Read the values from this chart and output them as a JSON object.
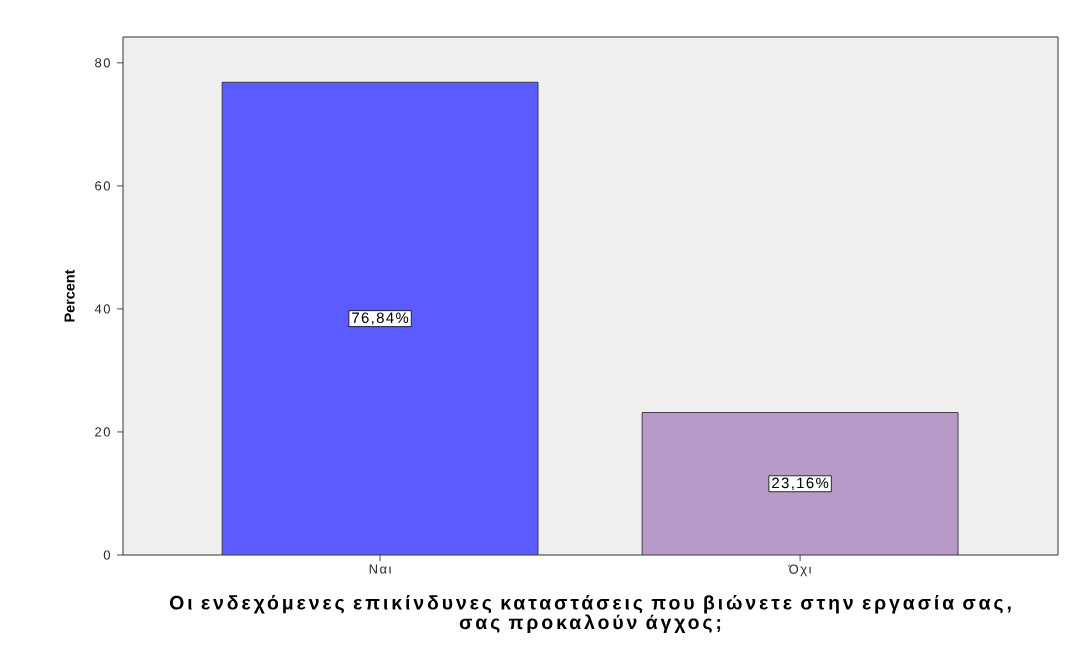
{
  "chart_data": {
    "type": "bar",
    "categories": [
      "Ναι",
      "Όχι"
    ],
    "values": [
      76.84,
      23.16
    ],
    "colors": [
      "#5b5bff",
      "#b89ac9"
    ],
    "value_labels": [
      "76,84%",
      "23,16%"
    ],
    "xlabel": "Οι ενδεχόμενες επικίνδυνες καταστάσεις που βιώνετε στην εργασία σας, σας προκαλούν άγχος;",
    "ylabel": "Percent",
    "ylim": [
      0,
      84.2
    ],
    "yticks": [
      0,
      20,
      40,
      60,
      80
    ],
    "grid": false
  }
}
